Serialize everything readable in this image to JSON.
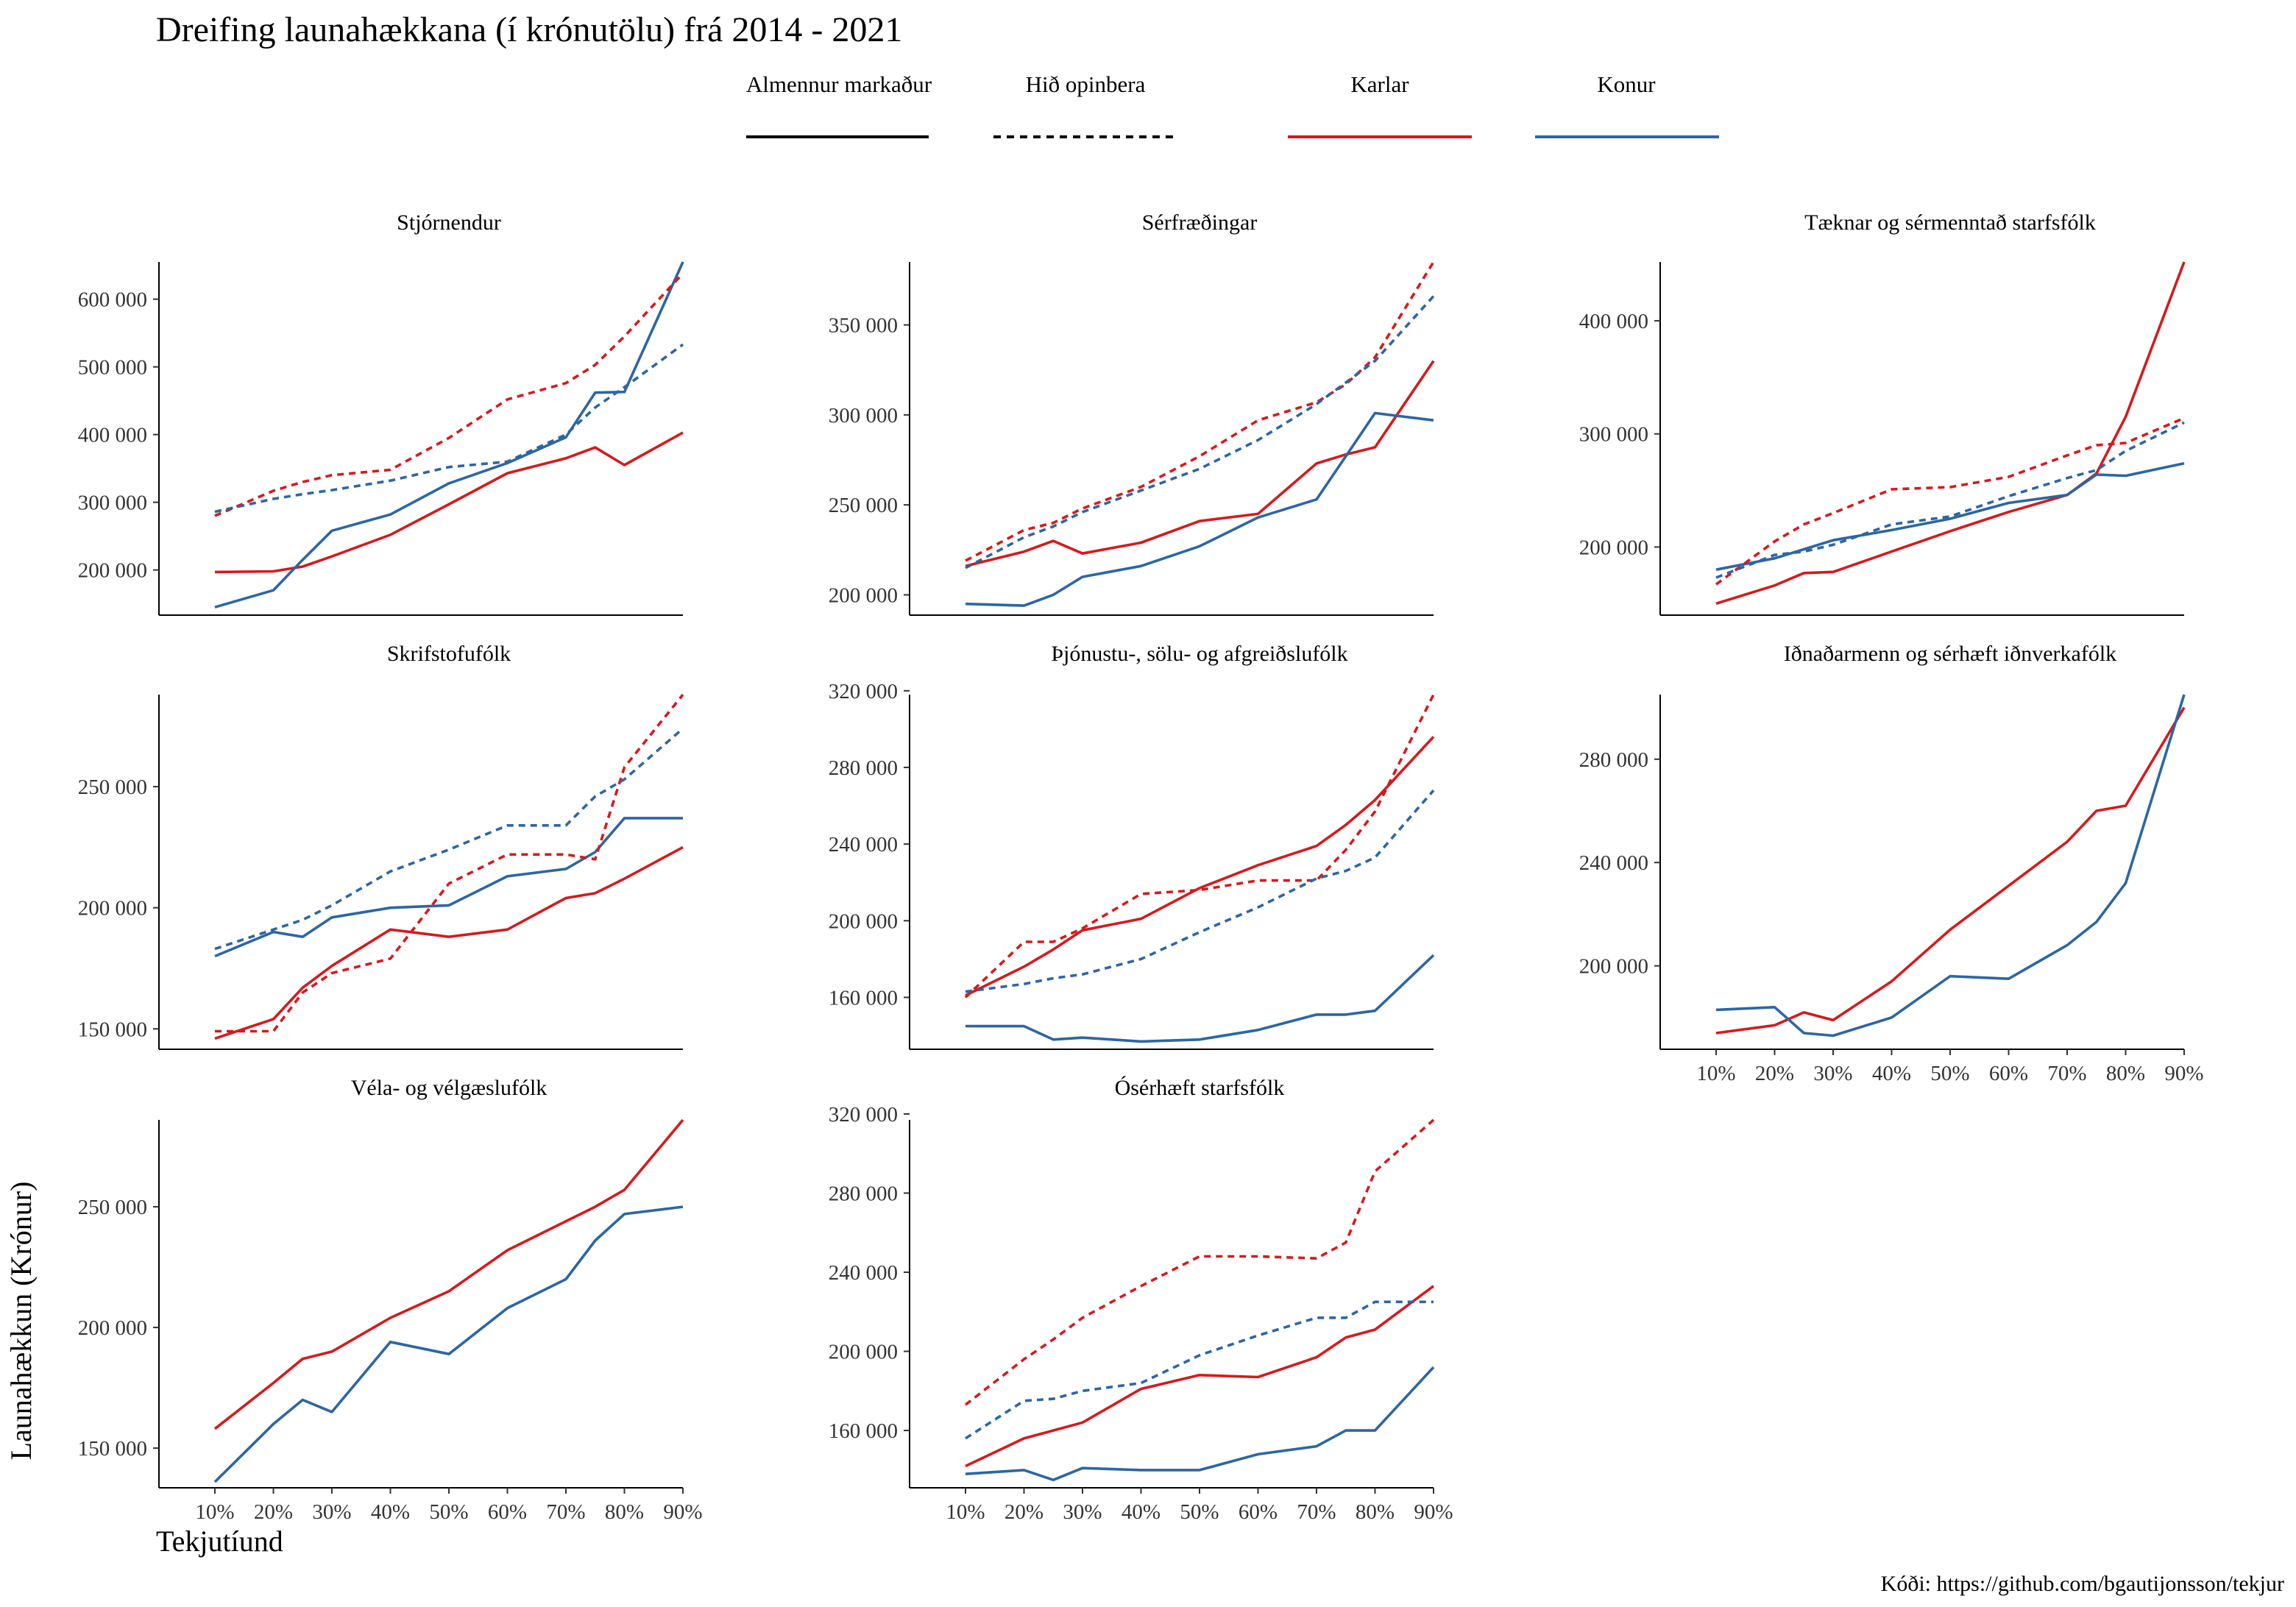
{
  "title": "Dreifing launahækkana (í krónutölu) frá 2014 - 2021",
  "caption": "Kóði: https://github.com/bgautijonsson/tekjur",
  "xlabel": "Tekjutíund",
  "ylabel": "Launahækkun (Krónur)",
  "colors": {
    "Karlar": "#d7191c",
    "Konur": "#2c66a4"
  },
  "legend": [
    {
      "label": "Almennur markaður",
      "type": "linetype",
      "dash": "solid"
    },
    {
      "label": "Hið opinbera",
      "type": "linetype",
      "dash": "dashed"
    },
    {
      "label": "Karlar",
      "type": "color",
      "key": "Karlar"
    },
    {
      "label": "Konur",
      "type": "color",
      "key": "Konur"
    }
  ],
  "chart_data": {
    "type": "line",
    "x_ticks": [
      10,
      20,
      30,
      40,
      50,
      60,
      70,
      80,
      90
    ],
    "x_tick_labels": [
      "10%",
      "20%",
      "30%",
      "40%",
      "50%",
      "60%",
      "70%",
      "80%",
      "90%"
    ],
    "x_range": [
      10,
      90
    ],
    "x": [
      10,
      20,
      25,
      30,
      40,
      50,
      60,
      70,
      75,
      80,
      90
    ],
    "panels": [
      {
        "name": "Stjórnendur",
        "ylim": [
          142000,
          655000
        ],
        "yticks": [
          200000,
          300000,
          400000,
          500000,
          600000
        ],
        "ytick_labels": [
          "200 000",
          "300 000",
          "400 000",
          "500 000",
          "600 000"
        ],
        "series": [
          {
            "name": "Karlar",
            "sector": "Almennur markaður",
            "values": [
              197000,
              198000,
              205000,
              220000,
              252000,
              297000,
              343000,
              365000,
              381000,
              355000,
              403000
            ]
          },
          {
            "name": "Konur",
            "sector": "Almennur markaður",
            "values": [
              145000,
              170000,
              215000,
              258000,
              282000,
              328000,
              358000,
              396000,
              462000,
              463000,
              655000
            ]
          },
          {
            "name": "Karlar",
            "sector": "Hið opinbera",
            "values": [
              280000,
              317000,
              330000,
              340000,
              348000,
              395000,
              452000,
              476000,
              503000,
              545000,
              638000
            ]
          },
          {
            "name": "Konur",
            "sector": "Hið opinbera",
            "values": [
              286000,
              305000,
              312000,
              318000,
              332000,
              352000,
              360000,
              400000,
              440000,
              470000,
              533000
            ]
          }
        ]
      },
      {
        "name": "Sérfræðingar",
        "ylim": [
          192000,
          385000
        ],
        "yticks": [
          200000,
          250000,
          300000,
          350000
        ],
        "ytick_labels": [
          "200 000",
          "250 000",
          "300 000",
          "350 000"
        ],
        "series": [
          {
            "name": "Karlar",
            "sector": "Almennur markaður",
            "values": [
              216000,
              224000,
              230000,
              223000,
              229000,
              241000,
              245000,
              273000,
              278000,
              282000,
              330000
            ]
          },
          {
            "name": "Konur",
            "sector": "Almennur markaður",
            "values": [
              195000,
              194000,
              200000,
              210000,
              216000,
              227000,
              243000,
              253000,
              277000,
              301000,
              297000
            ]
          },
          {
            "name": "Karlar",
            "sector": "Hið opinbera",
            "values": [
              219000,
              236000,
              240000,
              248000,
              260000,
              277000,
              297000,
              307000,
              317000,
              332000,
              385000
            ]
          },
          {
            "name": "Konur",
            "sector": "Hið opinbera",
            "values": [
              215000,
              232000,
              238000,
              246000,
              258000,
              270000,
              286000,
              306000,
              318000,
              330000,
              366000
            ]
          }
        ]
      },
      {
        "name": "Tæknar og sérmenntað starfsfólk",
        "ylim": [
          145000,
          452000
        ],
        "yticks": [
          200000,
          300000,
          400000
        ],
        "ytick_labels": [
          "200 000",
          "300 000",
          "400 000"
        ],
        "series": [
          {
            "name": "Karlar",
            "sector": "Almennur markaður",
            "values": [
              150000,
              166000,
              177000,
              178000,
              196000,
              214000,
              231000,
              246000,
              265000,
              315000,
              452000
            ]
          },
          {
            "name": "Konur",
            "sector": "Almennur markaður",
            "values": [
              180000,
              190000,
              198000,
              206000,
              215000,
              225000,
              239000,
              246000,
              264000,
              263000,
              274000
            ]
          },
          {
            "name": "Karlar",
            "sector": "Hið opinbera",
            "values": [
              167000,
              205000,
              220000,
              230000,
              251000,
              253000,
              262000,
              281000,
              290000,
              292000,
              314000
            ]
          },
          {
            "name": "Konur",
            "sector": "Hið opinbera",
            "values": [
              173000,
              193000,
              196000,
              202000,
              220000,
              227000,
              245000,
              261000,
              268000,
              285000,
              310000
            ]
          }
        ]
      },
      {
        "name": "Skrifstofufólk",
        "ylim": [
          144000,
          288000
        ],
        "yticks": [
          150000,
          200000,
          250000
        ],
        "ytick_labels": [
          "150 000",
          "200 000",
          "250 000"
        ],
        "series": [
          {
            "name": "Karlar",
            "sector": "Almennur markaður",
            "values": [
              146000,
              154000,
              167000,
              176000,
              191000,
              188000,
              191000,
              204000,
              206000,
              212000,
              225000
            ]
          },
          {
            "name": "Konur",
            "sector": "Almennur markaður",
            "values": [
              180000,
              190000,
              188000,
              196000,
              200000,
              201000,
              213000,
              216000,
              223000,
              237000,
              237000
            ]
          },
          {
            "name": "Karlar",
            "sector": "Hið opinbera",
            "values": [
              149000,
              149000,
              165000,
              173000,
              179000,
              210000,
              222000,
              222000,
              220000,
              258000,
              288000
            ]
          },
          {
            "name": "Konur",
            "sector": "Hið opinbera",
            "values": [
              183000,
              191000,
              195000,
              201000,
              215000,
              224000,
              234000,
              234000,
              246000,
              253000,
              274000
            ]
          }
        ]
      },
      {
        "name": "Þjónustu-, sölu- og afgreiðslufólk",
        "ylim": [
          136000,
          318000
        ],
        "yticks": [
          160000,
          200000,
          240000,
          280000,
          320000
        ],
        "ytick_labels": [
          "160 000",
          "200 000",
          "240 000",
          "280 000",
          "320 000"
        ],
        "series": [
          {
            "name": "Karlar",
            "sector": "Almennur markaður",
            "values": [
              161000,
              176000,
              185000,
              195000,
              201000,
              217000,
              229000,
              239000,
              250000,
              263000,
              296000
            ]
          },
          {
            "name": "Konur",
            "sector": "Almennur markaður",
            "values": [
              145000,
              145000,
              138000,
              139000,
              137000,
              138000,
              143000,
              151000,
              151000,
              153000,
              182000
            ]
          },
          {
            "name": "Karlar",
            "sector": "Hið opinbera",
            "values": [
              160000,
              189000,
              189000,
              196000,
              214000,
              216000,
              221000,
              221000,
              237000,
              257000,
              318000
            ]
          },
          {
            "name": "Konur",
            "sector": "Hið opinbera",
            "values": [
              163000,
              167000,
              170000,
              172000,
              180000,
              194000,
              207000,
              222000,
              226000,
              233000,
              268000
            ]
          }
        ]
      },
      {
        "name": "Iðnaðarmenn og sérhæft iðnverkafólk",
        "ylim": [
          170000,
          305000
        ],
        "yticks": [
          200000,
          240000,
          280000
        ],
        "ytick_labels": [
          "200 000",
          "240 000",
          "280 000"
        ],
        "series": [
          {
            "name": "Karlar",
            "sector": "Almennur markaður",
            "values": [
              174000,
              177000,
              182000,
              179000,
              194000,
              214000,
              231000,
              248000,
              260000,
              262000,
              300000
            ]
          },
          {
            "name": "Konur",
            "sector": "Almennur markaður",
            "values": [
              183000,
              184000,
              174000,
              173000,
              180000,
              196000,
              195000,
              208000,
              217000,
              232000,
              305000
            ]
          }
        ]
      },
      {
        "name": "Véla- og vélgæslufólk",
        "ylim": [
          136000,
          286000
        ],
        "yticks": [
          150000,
          200000,
          250000
        ],
        "ytick_labels": [
          "150 000",
          "200 000",
          "250 000"
        ],
        "series": [
          {
            "name": "Karlar",
            "sector": "Almennur markaður",
            "values": [
              158000,
              177000,
              187000,
              190000,
              204000,
              215000,
              232000,
              244000,
              250000,
              257000,
              286000
            ]
          },
          {
            "name": "Konur",
            "sector": "Almennur markaður",
            "values": [
              136000,
              160000,
              170000,
              165000,
              194000,
              189000,
              208000,
              220000,
              236000,
              247000,
              250000
            ]
          }
        ]
      },
      {
        "name": "Ósérhæft starfsfólk",
        "ylim": [
          134000,
          317000
        ],
        "yticks": [
          160000,
          200000,
          240000,
          280000,
          320000
        ],
        "ytick_labels": [
          "160 000",
          "200 000",
          "240 000",
          "280 000",
          "320 000"
        ],
        "series": [
          {
            "name": "Karlar",
            "sector": "Almennur markaður",
            "values": [
              142000,
              156000,
              160000,
              164000,
              181000,
              188000,
              187000,
              197000,
              207000,
              211000,
              233000
            ]
          },
          {
            "name": "Konur",
            "sector": "Almennur markaður",
            "values": [
              138000,
              140000,
              135000,
              141000,
              140000,
              140000,
              148000,
              152000,
              160000,
              160000,
              192000
            ]
          },
          {
            "name": "Karlar",
            "sector": "Hið opinbera",
            "values": [
              173000,
              196000,
              206000,
              217000,
              233000,
              248000,
              248000,
              247000,
              255000,
              291000,
              317000
            ]
          },
          {
            "name": "Konur",
            "sector": "Hið opinbera",
            "values": [
              156000,
              175000,
              176000,
              180000,
              184000,
              198000,
              208000,
              217000,
              217000,
              225000,
              225000
            ]
          }
        ]
      }
    ]
  }
}
